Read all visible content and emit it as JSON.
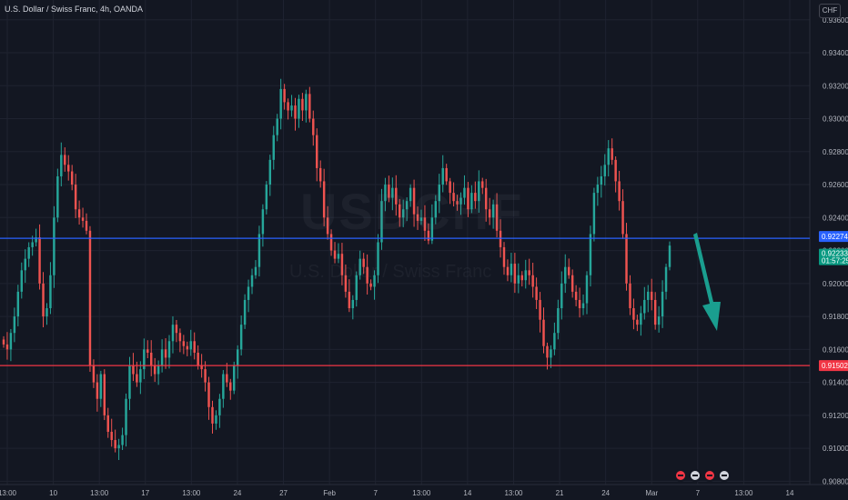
{
  "header": {
    "symbol_line": "U.S. Dollar / Swiss Franc, 4h, OANDA"
  },
  "watermark": {
    "ticker": "USDCHF",
    "description": "U.S. Dollar / Swiss Franc"
  },
  "currency_label": "CHF",
  "colors": {
    "background": "#131722",
    "up_candle": "#26a69a",
    "down_candle": "#ef5350",
    "resistance_line": "#2962ff",
    "support_line": "#f23645",
    "arrow": "#1a9e8f",
    "grid": "#1f2330",
    "axis_text": "#b2b5be"
  },
  "chart_data": {
    "type": "candlestick",
    "ylim": [
      0.9078,
      0.9372
    ],
    "y_ticks": [
      "0.93600",
      "0.93400",
      "0.93200",
      "0.93000",
      "0.92800",
      "0.92600",
      "0.92400",
      "0.92200",
      "0.92000",
      "0.91800",
      "0.91600",
      "0.91400",
      "0.91200",
      "0.91000",
      "0.90800"
    ],
    "x_ticks": [
      "13:00",
      "10",
      "13:00",
      "17",
      "13:00",
      "24",
      "27",
      "Feb",
      "7",
      "13:00",
      "14",
      "13:00",
      "21",
      "24",
      "Mar",
      "7",
      "13:00",
      "14"
    ],
    "price_levels": {
      "resistance": {
        "label": "0.92274",
        "value": 0.92274
      },
      "current": {
        "label": "0.92233",
        "value": 0.92233,
        "countdown": "01:57:25"
      },
      "support": {
        "label": "0.91502",
        "value": 0.91502
      }
    },
    "close_path": [
      0.9163,
      0.916,
      0.917,
      0.918,
      0.9195,
      0.9208,
      0.9215,
      0.9222,
      0.9225,
      0.9228,
      0.92,
      0.918,
      0.9185,
      0.9205,
      0.924,
      0.9265,
      0.9278,
      0.9272,
      0.9268,
      0.926,
      0.9245,
      0.924,
      0.9238,
      0.9232,
      0.915,
      0.914,
      0.913,
      0.9145,
      0.912,
      0.911,
      0.9105,
      0.91,
      0.9102,
      0.9108,
      0.913,
      0.915,
      0.9145,
      0.914,
      0.9148,
      0.916,
      0.9158,
      0.915,
      0.9145,
      0.915,
      0.916,
      0.9155,
      0.9165,
      0.9175,
      0.917,
      0.9165,
      0.9162,
      0.916,
      0.9165,
      0.9158,
      0.915,
      0.9148,
      0.914,
      0.9125,
      0.9115,
      0.912,
      0.913,
      0.9145,
      0.914,
      0.9135,
      0.915,
      0.916,
      0.9175,
      0.919,
      0.9198,
      0.9205,
      0.921,
      0.923,
      0.9245,
      0.926,
      0.9275,
      0.929,
      0.93,
      0.9318,
      0.931,
      0.9305,
      0.9308,
      0.93,
      0.9312,
      0.9305,
      0.9315,
      0.93,
      0.929,
      0.927,
      0.9262,
      0.924,
      0.923,
      0.922,
      0.9215,
      0.9218,
      0.9205,
      0.9195,
      0.9185,
      0.919,
      0.9205,
      0.9215,
      0.921,
      0.92,
      0.9198,
      0.9205,
      0.9225,
      0.925,
      0.926,
      0.9252,
      0.9258,
      0.9248,
      0.924,
      0.9245,
      0.925,
      0.9258,
      0.9242,
      0.9238,
      0.924,
      0.9232,
      0.9226,
      0.924,
      0.925,
      0.926,
      0.927,
      0.9262,
      0.9255,
      0.925,
      0.9248,
      0.9252,
      0.9258,
      0.9245,
      0.9255,
      0.925,
      0.9262,
      0.9258,
      0.9245,
      0.924,
      0.9248,
      0.9232,
      0.9222,
      0.921,
      0.9205,
      0.9212,
      0.92,
      0.9205,
      0.9202,
      0.9208,
      0.9205,
      0.9198,
      0.919,
      0.9178,
      0.9162,
      0.9155,
      0.916,
      0.917,
      0.9185,
      0.92,
      0.921,
      0.9205,
      0.9195,
      0.919,
      0.9185,
      0.9188,
      0.9205,
      0.923,
      0.9255,
      0.926,
      0.9265,
      0.9272,
      0.9282,
      0.9275,
      0.9262,
      0.925,
      0.923,
      0.92,
      0.9185,
      0.9178,
      0.9175,
      0.9182,
      0.919,
      0.9195,
      0.919,
      0.9175,
      0.918,
      0.9195,
      0.921,
      0.9223
    ]
  },
  "event_markers": [
    "flag-icon-us",
    "flag-icon-us",
    "flag-icon-ch",
    "flag-icon-us"
  ]
}
